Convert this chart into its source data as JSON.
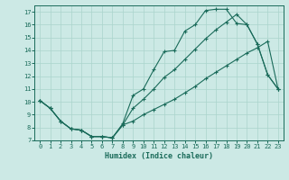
{
  "xlabel": "Humidex (Indice chaleur)",
  "background_color": "#cce9e5",
  "line_color": "#1a6b5a",
  "grid_color": "#aad4cc",
  "xlim": [
    -0.5,
    23.5
  ],
  "ylim": [
    7,
    17.5
  ],
  "yticks": [
    7,
    8,
    9,
    10,
    11,
    12,
    13,
    14,
    15,
    16,
    17
  ],
  "xticks": [
    0,
    1,
    2,
    3,
    4,
    5,
    6,
    7,
    8,
    9,
    10,
    11,
    12,
    13,
    14,
    15,
    16,
    17,
    18,
    19,
    20,
    21,
    22,
    23
  ],
  "line1_x": [
    0,
    1,
    2,
    3,
    4,
    5,
    6,
    7,
    8,
    9,
    10,
    11,
    12,
    13,
    14,
    15,
    16,
    17,
    18,
    19,
    20,
    21,
    22,
    23
  ],
  "line1_y": [
    10.1,
    9.5,
    8.5,
    7.9,
    7.8,
    7.3,
    7.3,
    7.2,
    8.3,
    10.5,
    11.0,
    12.5,
    13.9,
    14.0,
    15.5,
    16.0,
    17.1,
    17.2,
    17.2,
    16.1,
    16.0,
    14.5,
    12.1,
    11.0
  ],
  "line2_x": [
    0,
    1,
    2,
    3,
    4,
    5,
    6,
    7,
    8,
    9,
    10,
    11,
    12,
    13,
    14,
    15,
    16,
    17,
    18,
    19,
    20,
    21,
    22,
    23
  ],
  "line2_y": [
    10.1,
    9.5,
    8.5,
    7.9,
    7.8,
    7.3,
    7.3,
    7.2,
    8.2,
    9.5,
    10.2,
    11.0,
    11.9,
    12.5,
    13.3,
    14.1,
    14.9,
    15.6,
    16.2,
    16.8,
    16.0,
    14.5,
    12.1,
    11.0
  ],
  "line3_x": [
    0,
    1,
    2,
    3,
    4,
    5,
    6,
    7,
    8,
    9,
    10,
    11,
    12,
    13,
    14,
    15,
    16,
    17,
    18,
    19,
    20,
    21,
    22,
    23
  ],
  "line3_y": [
    10.1,
    9.5,
    8.5,
    7.9,
    7.8,
    7.3,
    7.3,
    7.2,
    8.2,
    8.5,
    9.0,
    9.4,
    9.8,
    10.2,
    10.7,
    11.2,
    11.8,
    12.3,
    12.8,
    13.3,
    13.8,
    14.2,
    14.7,
    11.0
  ]
}
